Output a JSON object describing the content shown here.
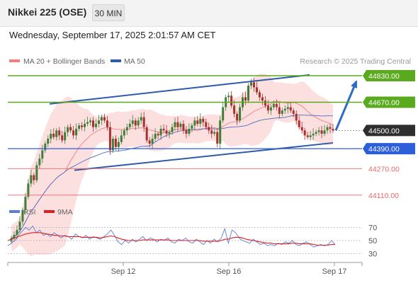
{
  "header": {
    "title": "Nikkei 225 (OSE)",
    "interval": "30 MIN",
    "datetime": "Wednesday, September 17, 2025 2:01:57 AM CET"
  },
  "legend": {
    "bollinger": "MA 20 + Bollinger Bands",
    "ma50": "MA 50",
    "source": "Research © 2025 Trading Central",
    "rsi": "RSI",
    "rsi_ma": "9MA"
  },
  "colors": {
    "bullish_level": "#5aaa1e",
    "bearish_level": "#e86868",
    "pivot": "#2c5fd9",
    "trend_line": "#2e5aa8",
    "bollinger_fill": "#fbd7d7",
    "ma20": "#f08080",
    "ma50": "#4a6fc2",
    "current_tag": "#2e2e2e",
    "rsi_line": "#5b7fd8",
    "rsi_ma_line": "#e02020"
  },
  "chart_data": [
    {
      "type": "candlestick",
      "instrument": "Nikkei 225 (OSE)",
      "interval": "30 MIN",
      "x_labels": [
        "Sep 12",
        "Sep 16",
        "Sep 17"
      ],
      "ylim": [
        43700,
        45000
      ],
      "current_price": 44500,
      "key_levels": [
        {
          "value": 44830,
          "label": "44830.00",
          "role": "resistance"
        },
        {
          "value": 44670,
          "label": "44670.00",
          "role": "resistance"
        },
        {
          "value": 44500,
          "label": "44500.00",
          "role": "current"
        },
        {
          "value": 44390,
          "label": "44390.00",
          "role": "pivot"
        },
        {
          "value": 44270,
          "label": "44270.00",
          "role": "support"
        },
        {
          "value": 44110,
          "label": "44110.00",
          "role": "support"
        }
      ],
      "close_series": [
        43850,
        43870,
        43900,
        43950,
        44020,
        44100,
        44180,
        44230,
        44200,
        44290,
        44330,
        44380,
        44420,
        44450,
        44480,
        44460,
        44500,
        44470,
        44440,
        44490,
        44520,
        44500,
        44470,
        44510,
        44530,
        44520,
        44540,
        44550,
        44560,
        44520,
        44540,
        44560,
        44580,
        44560,
        44520,
        44380,
        44450,
        44400,
        44430,
        44470,
        44500,
        44520,
        44540,
        44560,
        44530,
        44560,
        44580,
        44520,
        44440,
        44420,
        44450,
        44480,
        44470,
        44510,
        44500,
        44480,
        44490,
        44520,
        44550,
        44520,
        44540,
        44500,
        44480,
        44510,
        44530,
        44560,
        44540,
        44570,
        44550,
        44520,
        44500,
        44480,
        44490,
        44420,
        44560,
        44640,
        44700,
        44710,
        44650,
        44600,
        44560,
        44640,
        44700,
        44680,
        44770,
        44790,
        44760,
        44730,
        44700,
        44680,
        44650,
        44620,
        44640,
        44660,
        44640,
        44600,
        44620,
        44630,
        44640,
        44620,
        44600,
        44560,
        44520,
        44500,
        44470,
        44460,
        44470,
        44480,
        44490,
        44500,
        44480,
        44500,
        44520,
        44510,
        44500
      ],
      "forecast_arrow": {
        "from": 44500,
        "to": 44830
      }
    },
    {
      "type": "line",
      "title": "RSI",
      "series": [
        {
          "name": "RSI",
          "values": [
            42,
            46,
            50,
            58,
            64,
            70,
            66,
            72,
            62,
            66,
            58,
            60,
            56,
            62,
            58,
            54,
            58,
            56,
            52,
            60,
            56,
            54,
            58,
            52,
            56,
            54,
            52,
            56,
            60,
            66,
            58,
            48,
            44,
            50,
            46,
            52,
            48,
            52,
            56,
            50,
            54,
            52,
            48,
            52,
            50,
            54,
            48,
            46,
            52,
            50,
            54,
            48,
            46,
            52,
            48,
            44,
            50,
            46,
            52,
            48,
            54,
            68,
            46,
            66,
            62,
            54,
            50,
            48,
            46,
            52,
            48,
            44,
            46,
            42,
            44,
            42,
            46,
            44,
            48,
            46,
            50,
            44,
            42,
            46,
            48,
            44,
            40,
            42,
            44,
            42,
            44,
            50,
            44
          ]
        },
        {
          "name": "9MA",
          "values": [
            50,
            52,
            54,
            56,
            58,
            60,
            61,
            62,
            62,
            62,
            61,
            60,
            59,
            58,
            58,
            57,
            57,
            56,
            56,
            56,
            56,
            55,
            55,
            55,
            55,
            55,
            54,
            55,
            56,
            57,
            56,
            54,
            52,
            51,
            50,
            50,
            50,
            50,
            51,
            51,
            51,
            51,
            51,
            51,
            51,
            51,
            50,
            50,
            50,
            50,
            50,
            50,
            50,
            50,
            50,
            49,
            49,
            49,
            49,
            49,
            50,
            52,
            52,
            54,
            55,
            55,
            54,
            52,
            51,
            50,
            49,
            48,
            47,
            46,
            46,
            45,
            45,
            45,
            45,
            45,
            46,
            46,
            45,
            45,
            45,
            45,
            44,
            43,
            43,
            43,
            43,
            44,
            44
          ]
        }
      ],
      "ylim": [
        20,
        80
      ],
      "y_ticks": [
        70,
        50,
        30
      ]
    }
  ]
}
